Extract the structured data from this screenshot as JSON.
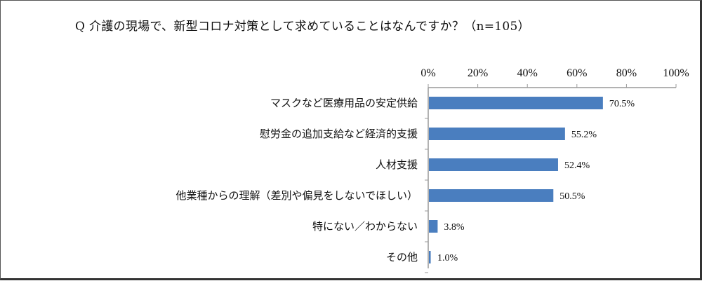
{
  "title": "Q 介護の現場で、新型コロナ対策として求めていることはなんですか？（n=105）",
  "colors": {
    "bar": "#4a7ebf",
    "axis": "#999999"
  },
  "chart_data": {
    "type": "bar",
    "orientation": "horizontal",
    "categories": [
      "マスクなど医療用品の安定供給",
      "慰労金の追加支給など経済的支援",
      "人材支援",
      "他業種からの理解（差別や偏見をしないでほしい）",
      "特にない／わからない",
      "その他"
    ],
    "values": [
      70.5,
      55.2,
      52.4,
      50.5,
      3.8,
      1.0
    ],
    "value_labels": [
      "70.5%",
      "55.2%",
      "52.4%",
      "50.5%",
      "3.8%",
      "1.0%"
    ],
    "xlim": [
      0,
      100
    ],
    "x_ticks": [
      "0%",
      "20%",
      "40%",
      "60%",
      "80%",
      "100%"
    ],
    "axis_position": "top",
    "grid": false,
    "legend": "none"
  }
}
